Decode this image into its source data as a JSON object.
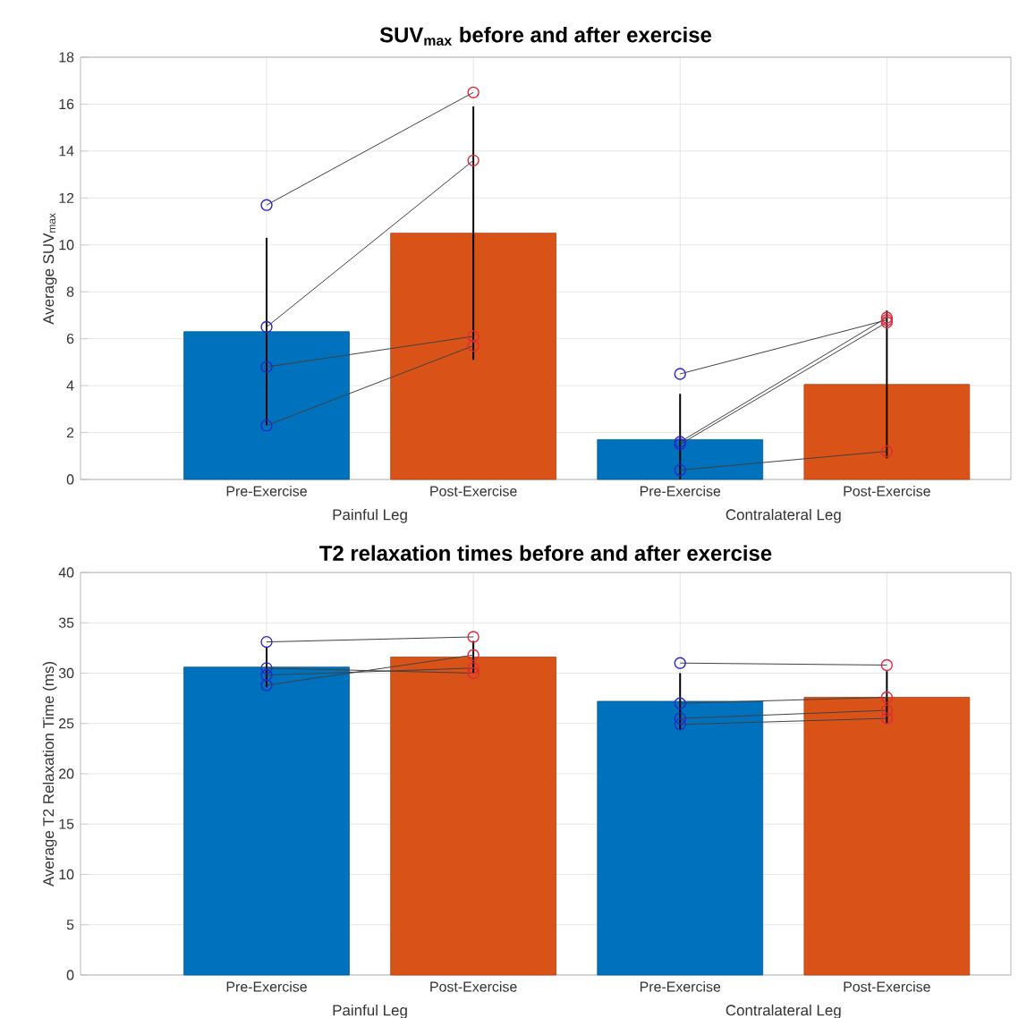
{
  "chart_data": [
    {
      "type": "bar",
      "title": "SUV$_{max}$ before and after exercise",
      "ylabel": "Average SUV$_{max}$",
      "categories": [
        "Pre-Exercise",
        "Post-Exercise",
        "Pre-Exercise",
        "Post-Exercise"
      ],
      "annotations": [
        "Painful Leg",
        "Contralateral Leg"
      ],
      "ylim": [
        0,
        18
      ],
      "yticks": [
        0,
        2,
        4,
        6,
        8,
        10,
        12,
        14,
        16,
        18
      ],
      "grid": true,
      "marker": "circle",
      "series": [
        {
          "values": [
            6.3,
            10.5,
            1.7,
            4.05
          ],
          "colors": [
            "#0072bd",
            "#d95319",
            "#0072bd",
            "#d95319"
          ],
          "errors": [
            4.0,
            5.4,
            [
              0,
              3.65
            ],
            3.15
          ]
        },
        {
          "type": "line",
          "color": "#404040",
          "values": [
            11.7,
            16.5,
            null,
            null
          ],
          "colors": [
            "#2828c8",
            "#e0283c",
            null,
            null
          ]
        },
        {
          "type": "line",
          "color": "#404040",
          "values": [
            6.5,
            13.6,
            null,
            null
          ],
          "colors": [
            "#2828c8",
            "#e0283c",
            null,
            null
          ]
        },
        {
          "type": "line",
          "color": "#404040",
          "values": [
            4.8,
            6.1,
            null,
            null
          ],
          "colors": [
            "#2828c8",
            "#e0283c",
            null,
            null
          ]
        },
        {
          "type": "line",
          "color": "#404040",
          "values": [
            2.3,
            5.7,
            null,
            null
          ],
          "colors": [
            "#2828c8",
            "#e0283c",
            null,
            null
          ]
        },
        {
          "type": "line",
          "color": "#404040",
          "values": [
            null,
            null,
            4.5,
            6.8
          ],
          "colors": [
            null,
            null,
            "#2828c8",
            "#e0283c"
          ]
        },
        {
          "type": "line",
          "color": "#404040",
          "values": [
            null,
            null,
            1.6,
            6.9
          ],
          "colors": [
            null,
            null,
            "#2828c8",
            "#e0283c"
          ]
        },
        {
          "type": "line",
          "color": "#404040",
          "values": [
            null,
            null,
            1.5,
            6.7
          ],
          "colors": [
            null,
            null,
            "#2828c8",
            "#e0283c"
          ]
        },
        {
          "type": "line",
          "color": "#404040",
          "values": [
            null,
            null,
            0.4,
            1.2
          ],
          "colors": [
            null,
            null,
            "#2828c8",
            "#e0283c"
          ]
        }
      ]
    },
    {
      "type": "bar",
      "title": "T2 relaxation times before and after exercise",
      "ylabel": "Average T2 Relaxation Time (ms)",
      "categories": [
        "Pre-Exercise",
        "Post-Exercise",
        "Pre-Exercise",
        "Post-Exercise"
      ],
      "annotations": [
        "Painful Leg",
        "Contralateral Leg"
      ],
      "ylim": [
        0,
        40
      ],
      "yticks": [
        0,
        5,
        10,
        15,
        20,
        25,
        30,
        35,
        40
      ],
      "grid": true,
      "marker": "circle",
      "series": [
        {
          "values": [
            30.6,
            31.6,
            27.2,
            27.6
          ],
          "colors": [
            "#0072bd",
            "#d95319",
            "#0072bd",
            "#d95319"
          ],
          "errors": [
            2.0,
            1.6,
            2.8,
            2.6
          ]
        },
        {
          "type": "line",
          "color": "#404040",
          "values": [
            33.1,
            33.6,
            null,
            null
          ],
          "colors": [
            "#2828c8",
            "#e0283c",
            null,
            null
          ]
        },
        {
          "type": "line",
          "color": "#404040",
          "values": [
            30.5,
            30.0,
            null,
            null
          ],
          "colors": [
            "#2828c8",
            "#e0283c",
            null,
            null
          ]
        },
        {
          "type": "line",
          "color": "#404040",
          "values": [
            29.8,
            30.5,
            null,
            null
          ],
          "colors": [
            "#2828c8",
            "#e0283c",
            null,
            null
          ]
        },
        {
          "type": "line",
          "color": "#404040",
          "values": [
            28.8,
            31.8,
            null,
            null
          ],
          "colors": [
            "#2828c8",
            "#e0283c",
            null,
            null
          ]
        },
        {
          "type": "line",
          "color": "#404040",
          "values": [
            null,
            null,
            31.0,
            30.8
          ],
          "colors": [
            null,
            null,
            "#2828c8",
            "#e0283c"
          ]
        },
        {
          "type": "line",
          "color": "#404040",
          "values": [
            null,
            null,
            27.0,
            27.6
          ],
          "colors": [
            null,
            null,
            "#2828c8",
            "#e0283c"
          ]
        },
        {
          "type": "line",
          "color": "#404040",
          "values": [
            null,
            null,
            25.5,
            26.3
          ],
          "colors": [
            null,
            null,
            "#2828c8",
            "#e0283c"
          ]
        },
        {
          "type": "line",
          "color": "#404040",
          "values": [
            null,
            null,
            24.9,
            25.5
          ],
          "colors": [
            null,
            null,
            "#2828c8",
            "#e0283c"
          ]
        }
      ]
    }
  ]
}
